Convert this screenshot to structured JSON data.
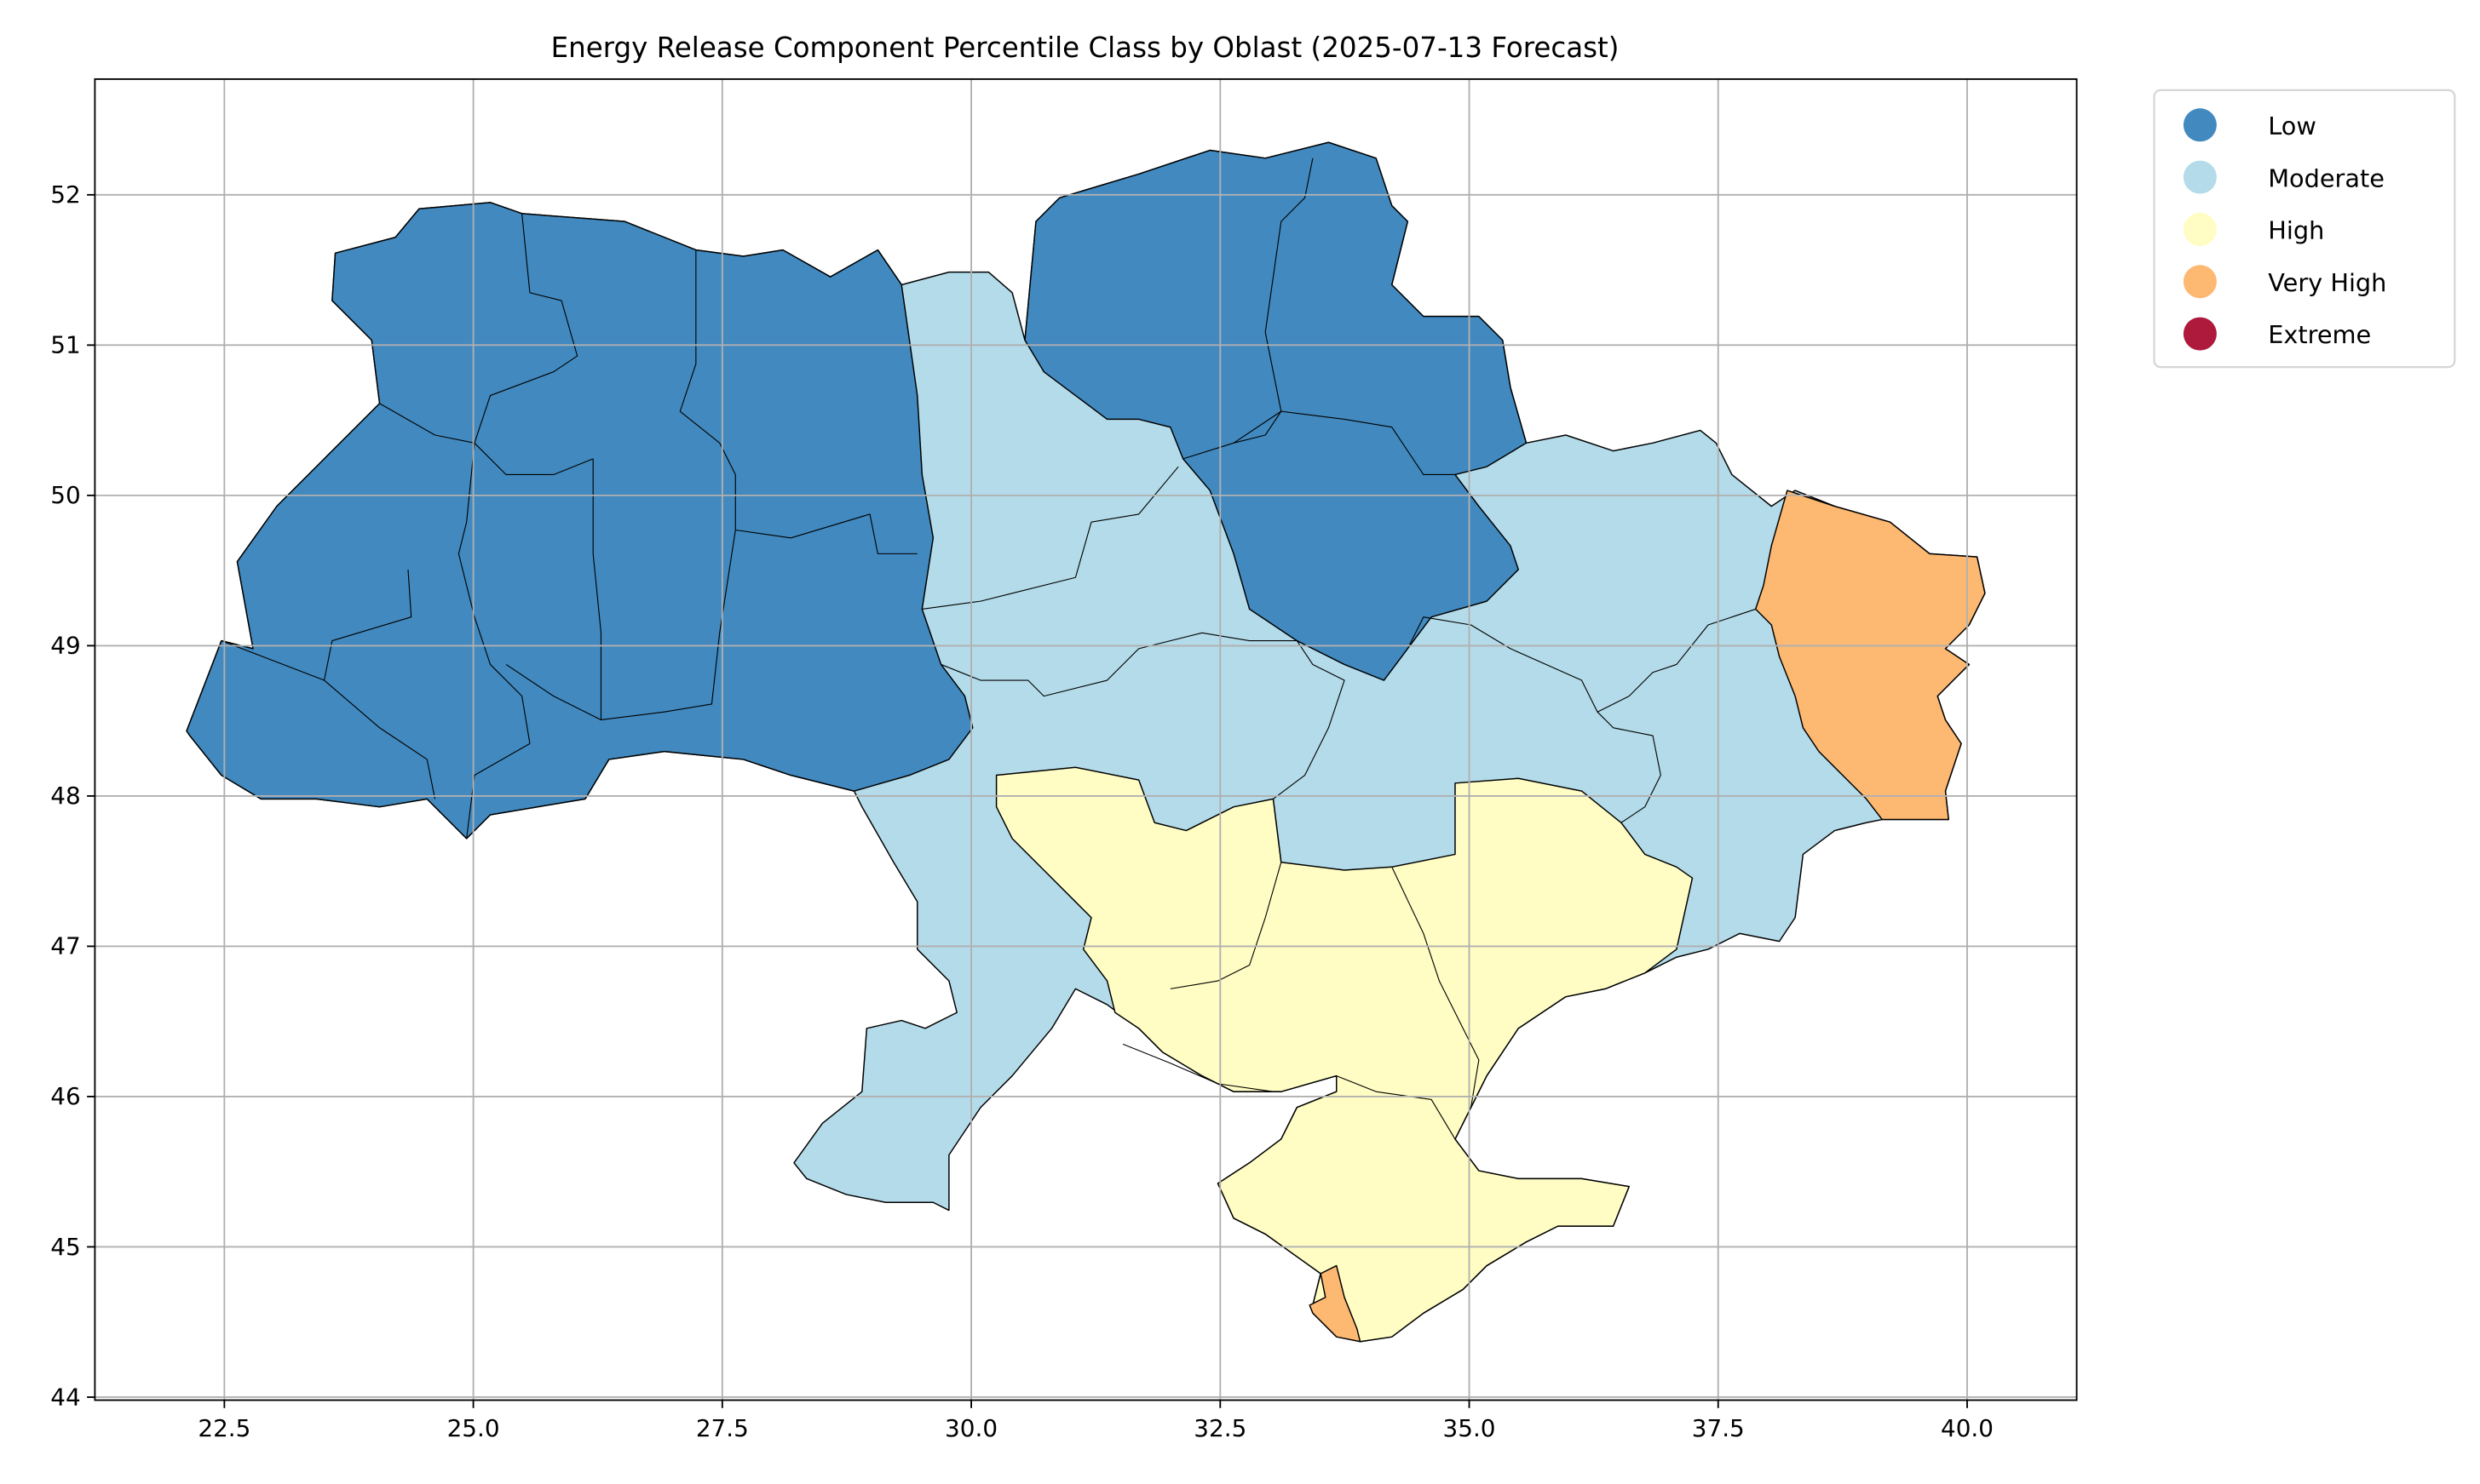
{
  "chart_data": {
    "type": "choropleth",
    "title": "Energy Release Component Percentile Class by Oblast (2025-07-13 Forecast)",
    "xlabel": "",
    "ylabel": "",
    "xlim": [
      21.2,
      41.1
    ],
    "ylim": [
      43.98,
      52.77
    ],
    "x_ticks": [
      "22.5",
      "25.0",
      "27.5",
      "30.0",
      "32.5",
      "35.0",
      "37.5",
      "40.0"
    ],
    "x_tick_values": [
      22.5,
      25.0,
      27.5,
      30.0,
      32.5,
      35.0,
      37.5,
      40.0
    ],
    "y_ticks": [
      "44",
      "45",
      "46",
      "47",
      "48",
      "49",
      "50",
      "51",
      "52"
    ],
    "y_tick_values": [
      44,
      45,
      46,
      47,
      48,
      49,
      50,
      51,
      52
    ],
    "grid": true,
    "legend_placement": "outside-top-right",
    "legend": [
      {
        "label": "Low",
        "color": "#4189bf"
      },
      {
        "label": "Moderate",
        "color": "#b3dbe9"
      },
      {
        "label": "High",
        "color": "#fffdc3"
      },
      {
        "label": "Very High",
        "color": "#fdb872"
      },
      {
        "label": "Extreme",
        "color": "#ad1a3c"
      }
    ],
    "regions": [
      {
        "area": "country-base",
        "class": "Moderate"
      },
      {
        "area": "west",
        "class": "Low"
      },
      {
        "area": "north-east",
        "class": "Low"
      },
      {
        "area": "south",
        "class": "High"
      },
      {
        "area": "east",
        "class": "Very High"
      },
      {
        "area": "crimea-south-west",
        "class": "Very High"
      }
    ]
  }
}
